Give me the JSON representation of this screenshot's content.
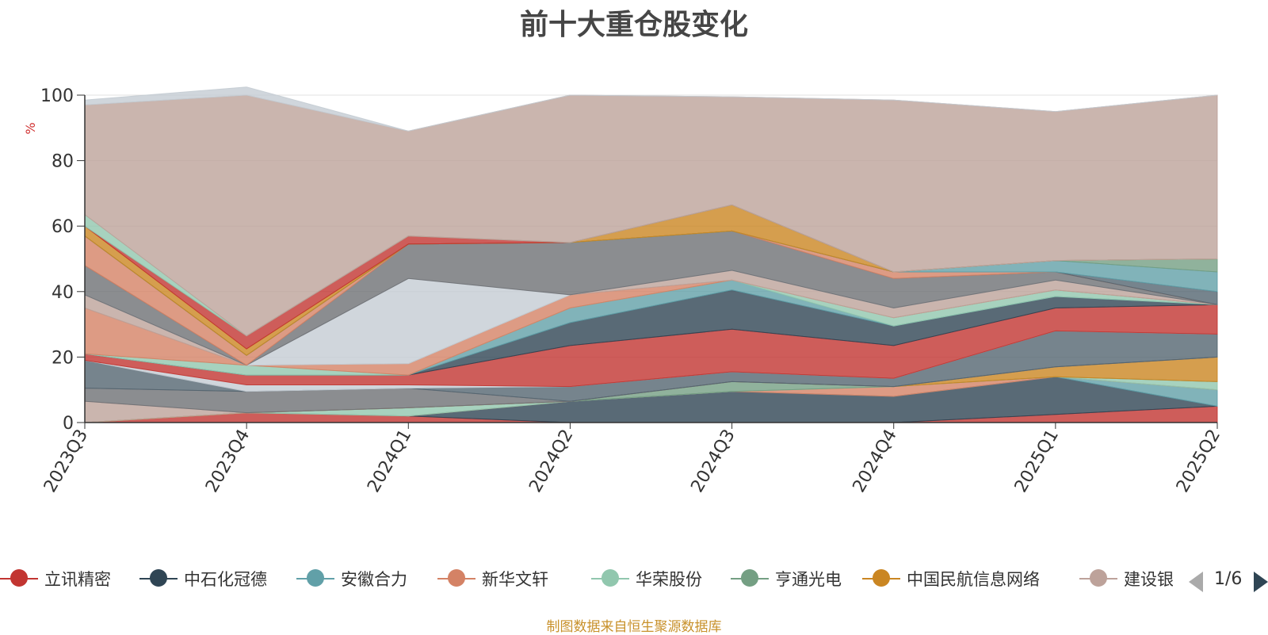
{
  "chart_data": {
    "type": "area",
    "title": "前十大重仓股变化",
    "ylabel": "%",
    "ylim": [
      0,
      100
    ],
    "yticks": [
      0,
      20,
      40,
      60,
      80,
      100
    ],
    "grid": true,
    "categories": [
      "2023Q3",
      "2023Q4",
      "2024Q1",
      "2024Q2",
      "2024Q3",
      "2024Q4",
      "2025Q1",
      "2025Q2"
    ],
    "series": [
      {
        "name": "立讯精密",
        "color": "#c23531",
        "values": [
          0,
          3,
          2,
          0,
          0,
          0,
          2.5,
          5
        ]
      },
      {
        "name": "中石化冠德",
        "color": "#2f4554",
        "values": [
          0,
          0,
          0,
          6.5,
          9.5,
          8,
          11.5,
          0
        ]
      },
      {
        "name": "安徽合力",
        "color": "#61a0a8",
        "values": [
          0,
          0,
          0,
          0,
          0,
          0,
          0,
          5
        ]
      },
      {
        "name": "新华文轩",
        "color": "#d48265",
        "values": [
          0,
          0,
          0,
          0,
          0,
          3,
          0,
          0
        ]
      },
      {
        "name": "华荣股份",
        "color": "#91c7ae",
        "values": [
          0,
          0,
          2.5,
          0,
          0,
          0,
          0,
          2.5
        ]
      },
      {
        "name": "亨通光电",
        "color": "#749f83",
        "values": [
          0,
          0,
          0,
          0,
          3,
          0,
          0,
          0
        ]
      },
      {
        "name": "中国民航信息网络",
        "color": "#ca8622",
        "values": [
          0,
          0,
          0,
          0,
          0,
          0,
          3,
          7.5
        ]
      },
      {
        "name": "建设银行",
        "color": "#bda29a",
        "values": [
          6.5,
          0,
          0,
          0,
          0,
          0,
          0,
          0
        ]
      },
      {
        "name": "",
        "color": "#6e7074",
        "values": [
          4,
          6.5,
          6,
          0,
          0,
          0,
          0,
          0
        ]
      },
      {
        "name": "",
        "color": "#546570",
        "values": [
          8.5,
          0,
          0,
          4.5,
          3,
          2.5,
          11,
          7
        ]
      },
      {
        "name": "",
        "color": "#c4ccd3",
        "values": [
          0,
          2,
          1,
          0,
          0,
          0,
          0,
          0
        ]
      },
      {
        "name": "",
        "color": "#c23531",
        "values": [
          2,
          3,
          3,
          12.5,
          13,
          10,
          7,
          9
        ]
      },
      {
        "name": "",
        "color": "#2f4554",
        "values": [
          0,
          0,
          0,
          7,
          12,
          6,
          3.5,
          0
        ]
      },
      {
        "name": "",
        "color": "#61a0a8",
        "values": [
          0,
          0,
          0,
          4.5,
          3,
          0,
          0,
          0
        ]
      },
      {
        "name": "",
        "color": "#91c7ae",
        "values": [
          0,
          3,
          0,
          0,
          0,
          2.5,
          2,
          0
        ]
      },
      {
        "name": "",
        "color": "#d48265",
        "values": [
          14,
          0,
          3.5,
          4,
          0,
          0,
          0,
          0
        ]
      },
      {
        "name": "",
        "color": "#bda29a",
        "values": [
          4,
          0,
          0,
          0,
          3,
          3,
          3,
          0
        ]
      },
      {
        "name": "",
        "color": "#c4ccd3",
        "values": [
          0,
          0,
          26,
          0,
          0,
          0,
          0,
          0
        ]
      },
      {
        "name": "",
        "color": "#6e7074",
        "values": [
          9,
          0,
          10.5,
          16,
          12,
          9,
          2.5,
          0
        ]
      },
      {
        "name": "",
        "color": "#d48265",
        "values": [
          9,
          3,
          0,
          0,
          0,
          2,
          0,
          0
        ]
      },
      {
        "name": "",
        "color": "#546570",
        "values": [
          0,
          0,
          0,
          0,
          0,
          0,
          0,
          4
        ]
      },
      {
        "name": "",
        "color": "#61a0a8",
        "values": [
          0,
          0,
          0,
          0,
          0,
          0,
          3.5,
          6
        ]
      },
      {
        "name": "",
        "color": "#749f83",
        "values": [
          0,
          0,
          0,
          0,
          0,
          0,
          0,
          4
        ]
      },
      {
        "name": "",
        "color": "#ca8622",
        "values": [
          3,
          2,
          0,
          0,
          8,
          0,
          0,
          0
        ]
      },
      {
        "name": "",
        "color": "#c23531",
        "values": [
          0,
          4,
          2.5,
          0,
          0,
          0,
          0,
          0
        ]
      },
      {
        "name": "",
        "color": "#91c7ae",
        "values": [
          3.5,
          0,
          0,
          0,
          0,
          0,
          0,
          0
        ]
      },
      {
        "name": "",
        "color": "#bda29a",
        "values": [
          33.5,
          73.5,
          32,
          45,
          33,
          52.5,
          45.5,
          50
        ]
      },
      {
        "name": "",
        "color": "#c4ccd3",
        "values": [
          1.5,
          2.5,
          0,
          0,
          0,
          0,
          0,
          0
        ]
      }
    ]
  },
  "legend": {
    "items": [
      {
        "label": "立讯精密",
        "color": "#c23531"
      },
      {
        "label": "中石化冠德",
        "color": "#2f4554"
      },
      {
        "label": "安徽合力",
        "color": "#61a0a8"
      },
      {
        "label": "新华文轩",
        "color": "#d48265"
      },
      {
        "label": "华荣股份",
        "color": "#91c7ae"
      },
      {
        "label": "亨通光电",
        "color": "#749f83"
      },
      {
        "label": "中国民航信息网络",
        "color": "#ca8622"
      },
      {
        "label": "建设银行",
        "color": "#bda29a"
      }
    ],
    "page_text": "1/6"
  },
  "footer": {
    "source": "制图数据来自恒生聚源数据库"
  }
}
